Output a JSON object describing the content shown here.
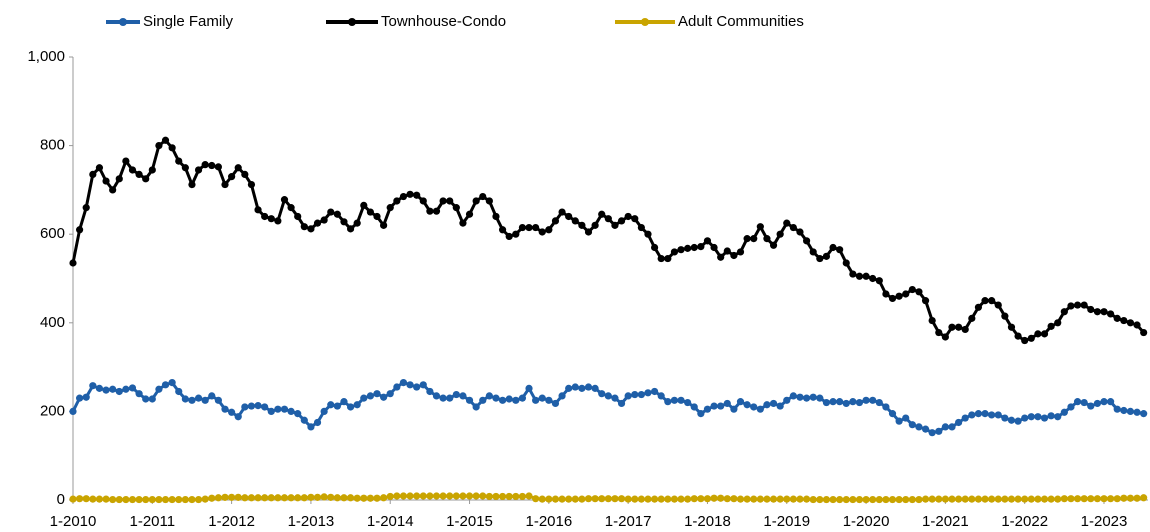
{
  "chart_data": {
    "type": "line",
    "categories": [
      "1-2010",
      null,
      null,
      null,
      null,
      null,
      null,
      null,
      null,
      null,
      null,
      null,
      "1-2011",
      null,
      null,
      null,
      null,
      null,
      null,
      null,
      null,
      null,
      null,
      null,
      "1-2012",
      null,
      null,
      null,
      null,
      null,
      null,
      null,
      null,
      null,
      null,
      null,
      "1-2013",
      null,
      null,
      null,
      null,
      null,
      null,
      null,
      null,
      null,
      null,
      null,
      "1-2014",
      null,
      null,
      null,
      null,
      null,
      null,
      null,
      null,
      null,
      null,
      null,
      "1-2015",
      null,
      null,
      null,
      null,
      null,
      null,
      null,
      null,
      null,
      null,
      null,
      "1-2016",
      null,
      null,
      null,
      null,
      null,
      null,
      null,
      null,
      null,
      null,
      null,
      "1-2017",
      null,
      null,
      null,
      null,
      null,
      null,
      null,
      null,
      null,
      null,
      null,
      "1-2018",
      null,
      null,
      null,
      null,
      null,
      null,
      null,
      null,
      null,
      null,
      null,
      "1-2019",
      null,
      null,
      null,
      null,
      null,
      null,
      null,
      null,
      null,
      null,
      null,
      "1-2020",
      null,
      null,
      null,
      null,
      null,
      null,
      null,
      null,
      null,
      null,
      null,
      "1-2021",
      null,
      null,
      null,
      null,
      null,
      null,
      null,
      null,
      null,
      null,
      null,
      "1-2022",
      null,
      null,
      null,
      null,
      null,
      null,
      null,
      null,
      null,
      null,
      null,
      "1-2023",
      null,
      null,
      null,
      null,
      null,
      null
    ],
    "series": [
      {
        "name": "Single Family",
        "color": "#1f5fa8",
        "values": [
          200,
          230,
          232,
          258,
          252,
          248,
          250,
          245,
          250,
          253,
          240,
          228,
          228,
          250,
          260,
          265,
          245,
          228,
          225,
          230,
          225,
          235,
          225,
          205,
          198,
          188,
          210,
          212,
          213,
          210,
          200,
          205,
          205,
          200,
          195,
          180,
          165,
          175,
          200,
          215,
          212,
          222,
          210,
          215,
          230,
          235,
          240,
          232,
          240,
          255,
          265,
          260,
          255,
          260,
          245,
          235,
          230,
          230,
          238,
          235,
          225,
          210,
          225,
          235,
          230,
          225,
          228,
          225,
          230,
          252,
          225,
          230,
          225,
          218,
          235,
          252,
          255,
          252,
          255,
          252,
          240,
          235,
          230,
          218,
          235,
          238,
          238,
          242,
          245,
          235,
          222,
          225,
          225,
          220,
          210,
          195,
          205,
          212,
          212,
          218,
          205,
          222,
          215,
          210,
          205,
          215,
          218,
          212,
          225,
          235,
          232,
          230,
          232,
          230,
          220,
          222,
          222,
          218,
          222,
          220,
          225,
          225,
          220,
          210,
          195,
          178,
          185,
          170,
          165,
          160,
          152,
          155,
          165,
          165,
          175,
          185,
          192,
          195,
          195,
          192,
          192,
          185,
          180,
          178,
          185,
          188,
          188,
          185,
          190,
          188,
          198,
          210,
          222,
          220,
          212,
          218,
          222,
          222,
          205,
          202,
          200,
          198,
          195
        ]
      },
      {
        "name": "Townhouse-Condo",
        "color": "#000000",
        "values": [
          535,
          610,
          660,
          735,
          750,
          720,
          700,
          725,
          765,
          745,
          735,
          725,
          745,
          800,
          812,
          795,
          765,
          750,
          712,
          745,
          757,
          755,
          752,
          712,
          730,
          750,
          735,
          712,
          655,
          640,
          635,
          630,
          678,
          660,
          640,
          617,
          612,
          625,
          632,
          650,
          645,
          628,
          612,
          625,
          665,
          650,
          640,
          620,
          660,
          675,
          685,
          690,
          688,
          675,
          652,
          652,
          675,
          675,
          660,
          625,
          645,
          675,
          685,
          675,
          640,
          610,
          595,
          600,
          615,
          615,
          615,
          605,
          610,
          630,
          650,
          640,
          630,
          620,
          605,
          620,
          645,
          635,
          620,
          630,
          640,
          635,
          615,
          600,
          570,
          545,
          545,
          560,
          565,
          568,
          570,
          572,
          585,
          570,
          548,
          562,
          552,
          560,
          590,
          590,
          617,
          590,
          575,
          600,
          625,
          615,
          605,
          585,
          560,
          545,
          550,
          570,
          565,
          535,
          510,
          505,
          505,
          500,
          495,
          465,
          455,
          460,
          465,
          475,
          470,
          450,
          405,
          378,
          368,
          390,
          390,
          385,
          410,
          435,
          450,
          450,
          440,
          415,
          390,
          370,
          360,
          365,
          375,
          375,
          392,
          400,
          425,
          438,
          440,
          440,
          430,
          425,
          425,
          420,
          410,
          405,
          400,
          395,
          378
        ]
      },
      {
        "name": "Adult Communities",
        "color": "#c9a400",
        "values": [
          2,
          3,
          3,
          2,
          2,
          2,
          1,
          1,
          1,
          1,
          1,
          1,
          1,
          1,
          1,
          1,
          1,
          1,
          1,
          1,
          2,
          4,
          5,
          6,
          6,
          6,
          5,
          5,
          5,
          5,
          5,
          5,
          5,
          5,
          5,
          5,
          6,
          6,
          7,
          6,
          5,
          5,
          5,
          4,
          4,
          4,
          4,
          5,
          8,
          9,
          9,
          9,
          9,
          9,
          9,
          9,
          9,
          9,
          9,
          9,
          9,
          9,
          9,
          8,
          8,
          8,
          8,
          8,
          8,
          9,
          3,
          2,
          2,
          2,
          2,
          2,
          2,
          2,
          3,
          3,
          3,
          3,
          3,
          3,
          2,
          2,
          2,
          2,
          2,
          2,
          2,
          2,
          2,
          2,
          3,
          3,
          3,
          4,
          4,
          3,
          3,
          2,
          2,
          2,
          2,
          2,
          2,
          2,
          2,
          2,
          2,
          2,
          1,
          1,
          1,
          1,
          1,
          1,
          1,
          1,
          1,
          1,
          1,
          1,
          1,
          1,
          1,
          1,
          1,
          2,
          2,
          2,
          2,
          2,
          2,
          2,
          2,
          2,
          2,
          2,
          2,
          2,
          2,
          2,
          2,
          2,
          2,
          2,
          2,
          2,
          3,
          3,
          3,
          3,
          3,
          3,
          3,
          3,
          3,
          4,
          4,
          4,
          5
        ]
      }
    ],
    "ylim": [
      0,
      1000
    ],
    "yticks": [
      0,
      200,
      400,
      600,
      800,
      {
        "value": 1000,
        "label": "1,000"
      }
    ],
    "legend": "top",
    "grid": false
  }
}
